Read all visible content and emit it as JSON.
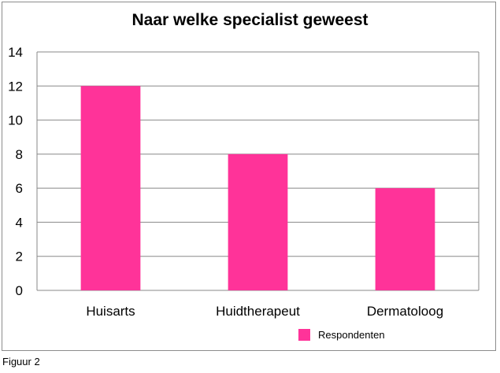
{
  "chart_data": {
    "type": "bar",
    "title": "Naar welke specialist geweest",
    "categories": [
      "Huisarts",
      "Huidtherapeut",
      "Dermatoloog"
    ],
    "series": [
      {
        "name": "Respondenten",
        "values": [
          12,
          8,
          6
        ]
      }
    ],
    "xlabel": "",
    "ylabel": "",
    "ylim": [
      0,
      14
    ],
    "yticks": [
      0,
      2,
      4,
      6,
      8,
      10,
      12,
      14
    ],
    "grid": true,
    "legend": "bottom-right",
    "bar_color": "#ff3399",
    "grid_color": "#888888"
  },
  "caption": "Figuur 2"
}
